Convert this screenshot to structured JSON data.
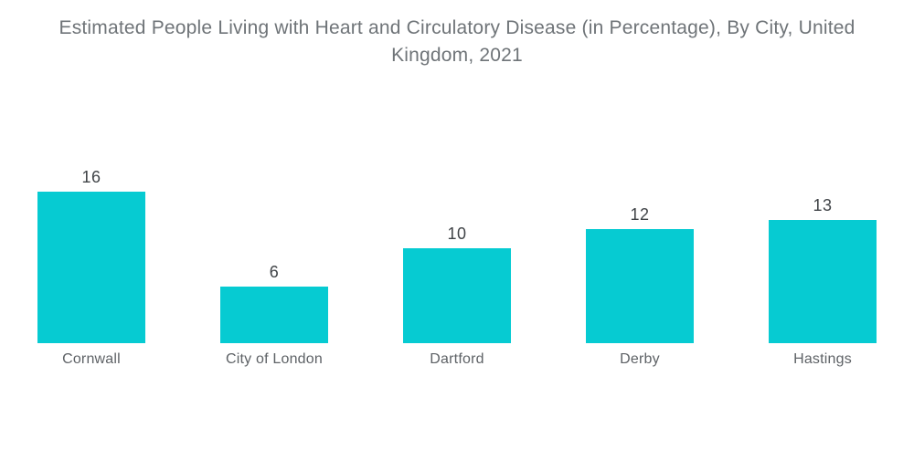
{
  "title": "Estimated People Living with Heart and Circulatory Disease (in Percentage), By City, United Kingdom, 2021",
  "colors": {
    "background": "#FFFFFF",
    "bar": "#06CBD2",
    "title_text": "#6F7478",
    "value_label": "#3F4347",
    "category_label": "#5E6266"
  },
  "chart_data": {
    "type": "bar",
    "title": "Estimated People Living with Heart and Circulatory Disease (in Percentage), By City, United Kingdom, 2021",
    "categories": [
      "Cornwall",
      "City of London",
      "Dartford",
      "Derby",
      "Hastings"
    ],
    "values": [
      16,
      6,
      10,
      12,
      13
    ],
    "xlabel": "",
    "ylabel": "",
    "ylim": [
      0,
      16
    ],
    "grid": false,
    "legend": "none",
    "axes_shown": false,
    "value_labels_shown": true,
    "bar_color": "#06CBD2"
  }
}
